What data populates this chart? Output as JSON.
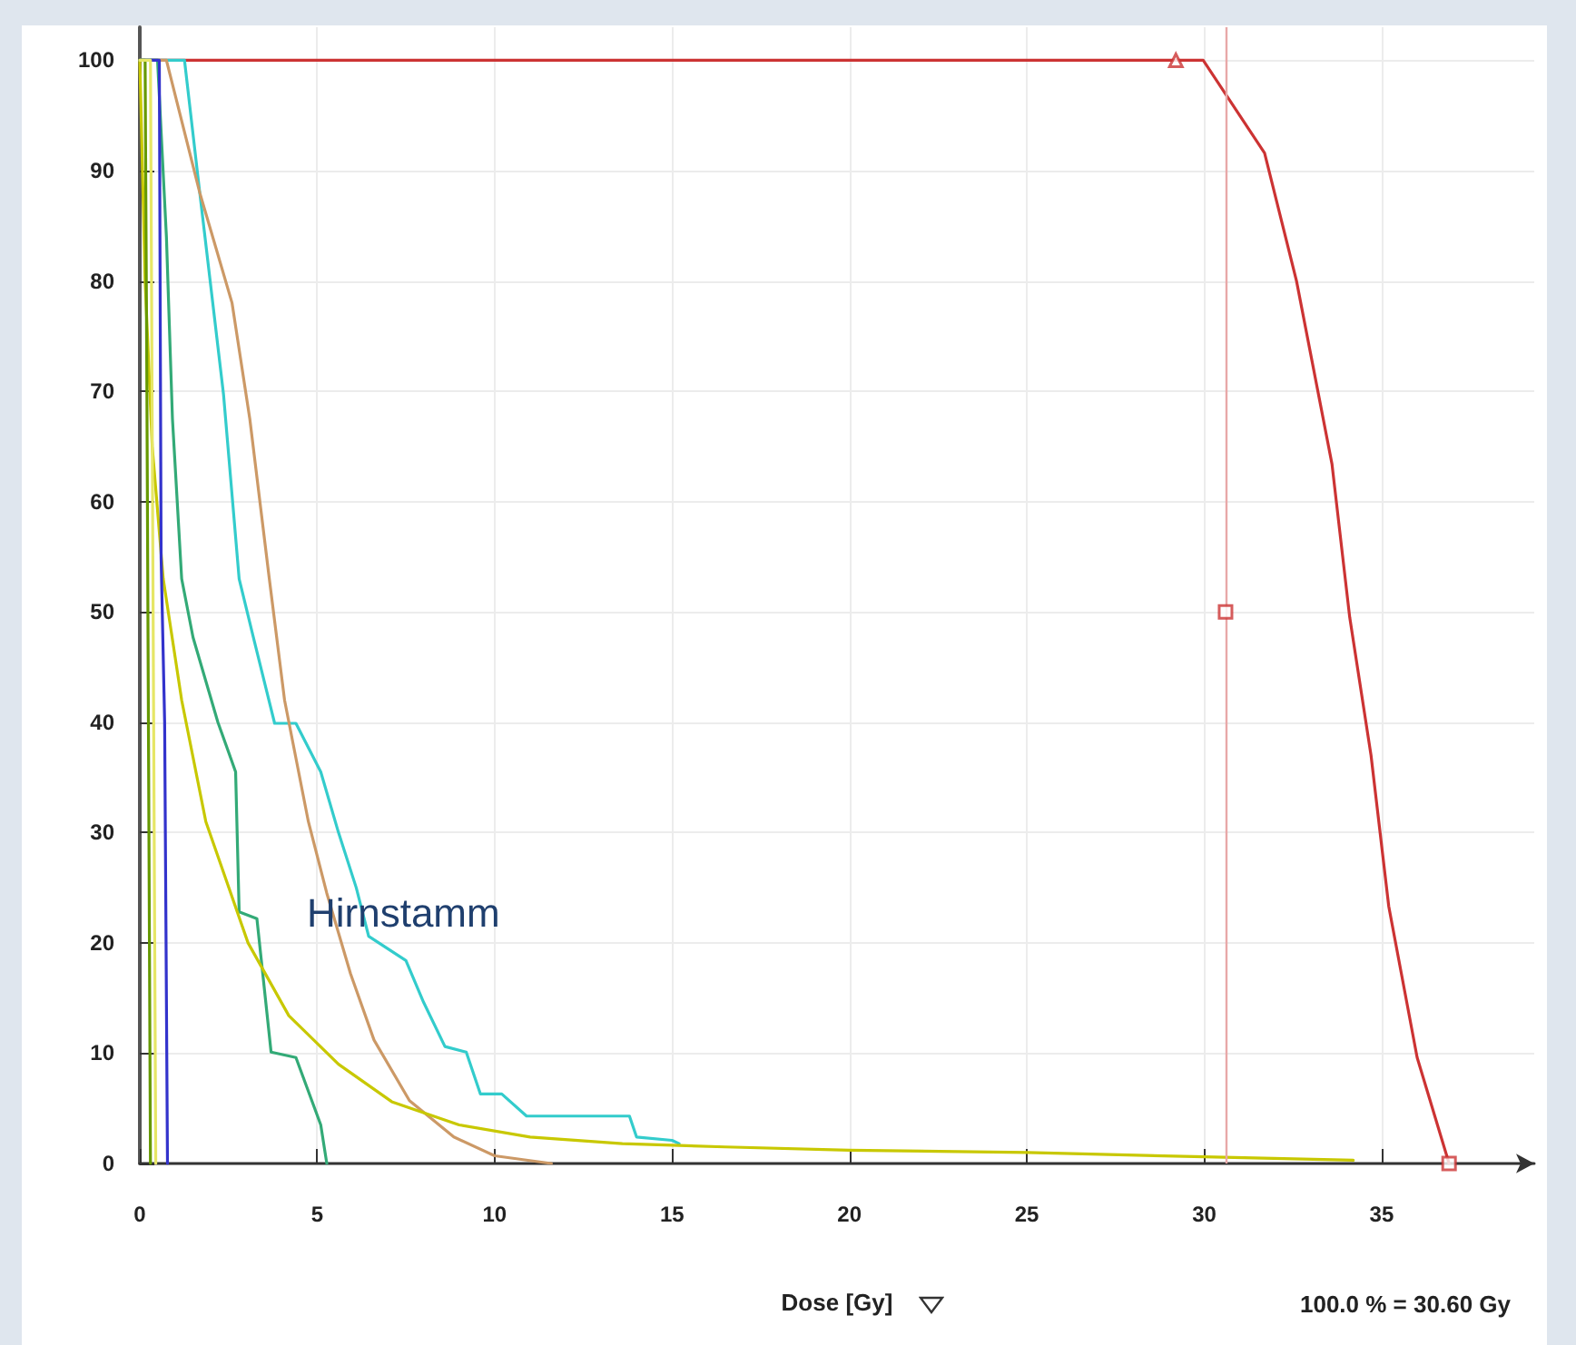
{
  "chart_data": {
    "type": "line",
    "xlabel": "Dose [Gy]",
    "annotations": [
      "Hirnstamm",
      "100.0 % = 30.60 Gy"
    ],
    "xlim": [
      0,
      39.3
    ],
    "ylim": [
      0,
      103
    ],
    "xticks": [
      0,
      5,
      10,
      15,
      20,
      25,
      30,
      35
    ],
    "yticks": [
      0,
      10,
      20,
      30,
      40,
      50,
      60,
      70,
      80,
      90,
      100
    ],
    "grid": true,
    "marker": "none",
    "line_style": "solid",
    "ref_lines": [
      {
        "axis": "x",
        "value": 30.6,
        "color": "#e8a8a8"
      }
    ],
    "series": [
      {
        "color": "#cc3333",
        "x": [
          0,
          29.2,
          29.97,
          31.7,
          32.6,
          33.6,
          34.1,
          34.7,
          35.2,
          36.0,
          36.9
        ],
        "values": [
          100,
          100,
          100,
          91.6,
          80,
          63.4,
          49.5,
          37,
          23.3,
          9.6,
          0
        ]
      },
      {
        "color": "#33cccc",
        "x": [
          0,
          1.26,
          1.69,
          2.36,
          2.8,
          3.2,
          3.8,
          4.4,
          5.1,
          5.6,
          6.1,
          6.45,
          7.5,
          8.0,
          8.6,
          9.2,
          9.6,
          10.2,
          10.9,
          13.8,
          14.0,
          15.0,
          15.2
        ],
        "values": [
          100,
          100,
          88,
          69.7,
          53,
          47.7,
          39.9,
          39.9,
          35.5,
          30,
          25,
          20.6,
          18.4,
          14.6,
          10.6,
          10.1,
          6.3,
          6.3,
          4.3,
          4.3,
          2.4,
          2.1,
          1.8
        ]
      },
      {
        "color": "#cc9966",
        "x": [
          0,
          0.75,
          1.69,
          2.6,
          3.1,
          3.65,
          4.08,
          4.75,
          5.27,
          5.94,
          6.6,
          7.6,
          8.85,
          10.0,
          11.6
        ],
        "values": [
          100,
          100,
          88,
          78,
          67.5,
          53,
          42,
          31,
          24.5,
          17.2,
          11.2,
          5.7,
          2.4,
          0.7,
          0
        ]
      },
      {
        "color": "#33aa77",
        "x": [
          0,
          0.5,
          0.75,
          0.92,
          1.18,
          1.5,
          2.2,
          2.7,
          2.8,
          3.3,
          3.7,
          4.4,
          5.1,
          5.27
        ],
        "values": [
          100,
          100,
          84,
          67.5,
          53,
          47.7,
          40,
          35.5,
          22.8,
          22.2,
          10.1,
          9.6,
          3.5,
          0
        ]
      },
      {
        "color": "#c8c800",
        "x": [
          0,
          0.15,
          0.35,
          0.66,
          1.18,
          1.86,
          3.05,
          4.2,
          5.6,
          7.1,
          9.0,
          11,
          13.6,
          16.5,
          20,
          25,
          30,
          34.2
        ],
        "values": [
          100,
          80,
          65,
          53,
          42,
          31,
          20,
          13.4,
          9,
          5.6,
          3.5,
          2.4,
          1.8,
          1.5,
          1.2,
          1,
          0.6,
          0.3
        ]
      },
      {
        "color": "#3333cc",
        "x": [
          0,
          0.55,
          0.6,
          0.7,
          0.78
        ],
        "values": [
          100,
          100,
          55,
          40,
          0
        ]
      },
      {
        "color": "#669900",
        "x": [
          0,
          0.15,
          0.2,
          0.3
        ],
        "values": [
          100,
          100,
          70,
          0
        ]
      },
      {
        "color": "#e6e666",
        "x": [
          0,
          0.3,
          0.45
        ],
        "values": [
          100,
          100,
          0
        ]
      },
      {
        "type": "scatter",
        "marker": "triangle",
        "color": "#cc3333",
        "x": [
          29.2
        ],
        "values": [
          100
        ]
      },
      {
        "type": "scatter",
        "marker": "square",
        "color": "#cc3333",
        "x": [
          30.6,
          36.9
        ],
        "values": [
          50,
          0
        ]
      }
    ]
  }
}
